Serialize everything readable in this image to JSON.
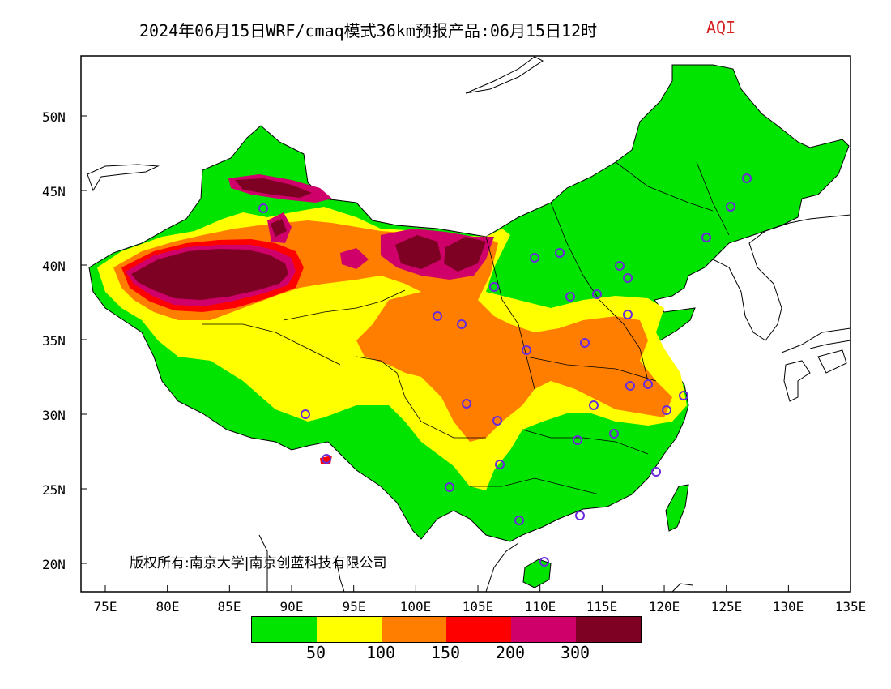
{
  "title": {
    "main": "2024年06月15日WRF/cmaq模式36km预报产品:06月15日12时",
    "variable": "AQI"
  },
  "axes": {
    "lat_labels": [
      "50N",
      "45N",
      "40N",
      "35N",
      "30N",
      "25N",
      "20N"
    ],
    "lon_labels": [
      "75E",
      "80E",
      "85E",
      "90E",
      "95E",
      "100E",
      "105E",
      "110E",
      "115E",
      "120E",
      "125E",
      "130E",
      "135E"
    ],
    "lon_range": [
      73,
      135
    ],
    "lat_range": [
      18,
      54
    ]
  },
  "copyright": "版权所有:南京大学|南京创蓝科技有限公司",
  "legend": {
    "colors": [
      "#00e400",
      "#ffff00",
      "#ff7e00",
      "#ff0000",
      "#d0006a",
      "#7e0023"
    ],
    "tick_labels": [
      "50",
      "100",
      "150",
      "200",
      "300"
    ]
  },
  "colors": {
    "good": "#00e400",
    "moderate": "#ffff00",
    "usg": "#ff7e00",
    "unhealthy": "#ff0000",
    "very_unhealthy": "#d0006a",
    "hazardous": "#7e0023",
    "station_marker": "#6a2bd8"
  }
}
